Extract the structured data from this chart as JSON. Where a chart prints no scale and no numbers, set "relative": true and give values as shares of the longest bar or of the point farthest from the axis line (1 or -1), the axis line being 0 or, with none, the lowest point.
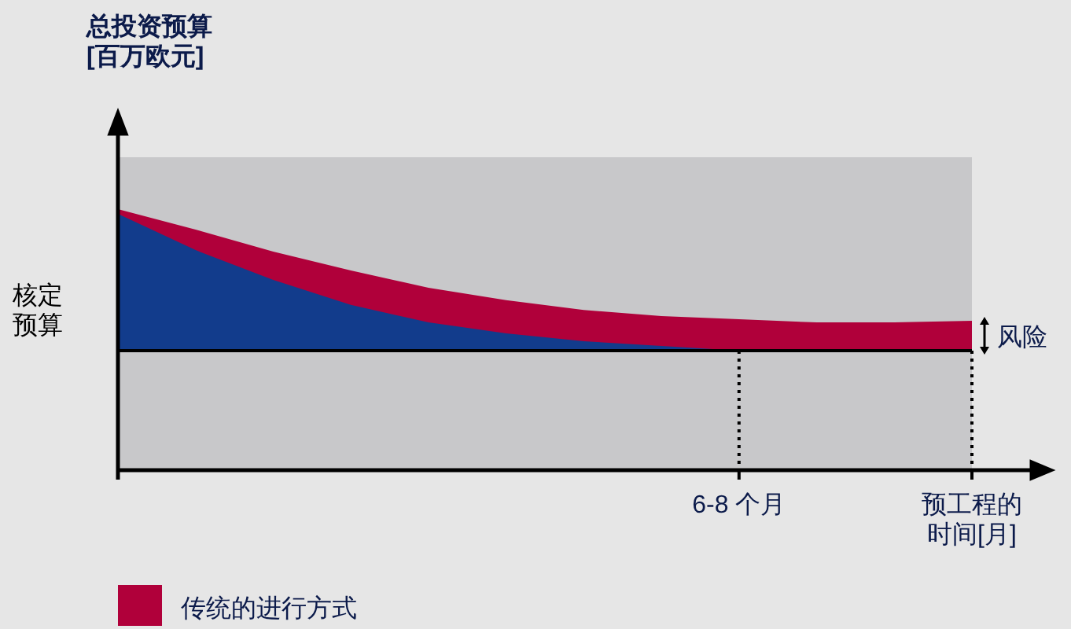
{
  "chart_data": {
    "type": "area",
    "relative": true,
    "categories": [
      null,
      null,
      null,
      null,
      null,
      null,
      null,
      null,
      "6-8 个月",
      null,
      null,
      "预工程的时间[月]"
    ],
    "series": [
      {
        "name": "传统的进行方式",
        "color": "#b0003a",
        "values": [
          1,
          0.922,
          0.837,
          0.765,
          0.699,
          0.651,
          0.614,
          0.59,
          0.578,
          0.566,
          0.566,
          0.572
        ]
      },
      {
        "color": "#123c8c",
        "values": [
          0.982,
          0.843,
          0.729,
          0.633,
          0.566,
          0.524,
          0.494,
          0.476,
          0.458,
          null,
          null,
          null
        ]
      }
    ],
    "ref_lines": [
      {
        "axis": "y",
        "value": 0.458,
        "label": "核定预算",
        "color": "#000000",
        "line_style": "solid"
      },
      {
        "axis": "x",
        "value": "6-8 个月",
        "color": "#000000",
        "line_style": "dotted"
      },
      {
        "axis": "x",
        "value": "预工程的时间[月]",
        "color": "#000000",
        "line_style": "dotted"
      }
    ],
    "annotations": [
      "总投资预算\n[百万欧元]",
      {
        "text": "风险",
        "x": "预工程的时间[月]",
        "y": 0.515
      }
    ],
    "legend": "bottom"
  }
}
